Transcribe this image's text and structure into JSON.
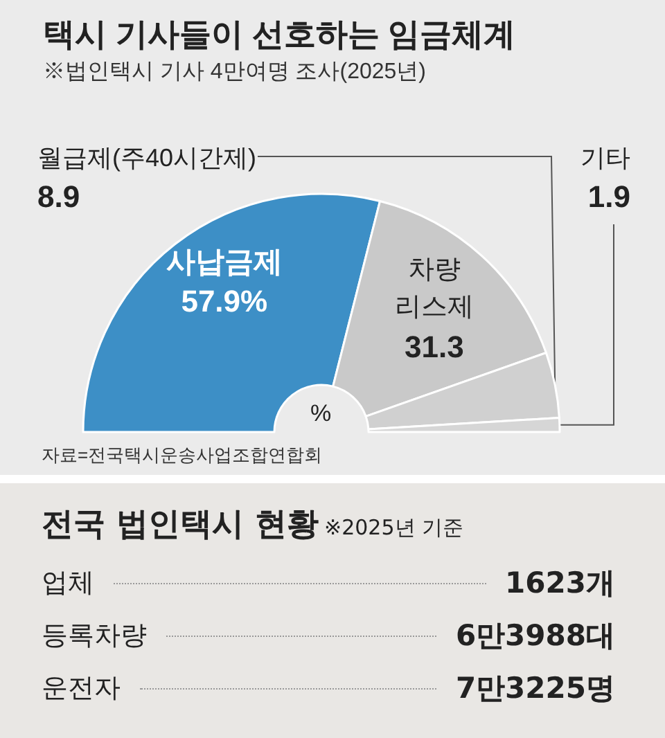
{
  "chart_data": [
    {
      "type": "donut",
      "title": "택시 기사들이 선호하는 임금체계",
      "subtitle": "※법인택시 기사 4만여명 조사(2025년)",
      "categories": [
        "사납금제",
        "차량 리스제",
        "월급제(주40시간제)",
        "기타"
      ],
      "values": [
        57.9,
        31.3,
        8.9,
        1.9
      ],
      "colors": [
        "#3d8fc6",
        "#c9c9c9",
        "#d0d0d0",
        "#d6d6d6"
      ],
      "value_labels": [
        "57.9%",
        "31.3",
        "8.9",
        "1.9"
      ],
      "annotations": [
        "%",
        "자료=전국택시운송사업조합연합회"
      ]
    },
    {
      "type": "other",
      "title": "전국 법인택시 현황",
      "subtitle": "※2025년 기준",
      "categories": [
        "업체",
        "등록차량",
        "운전자"
      ],
      "value_labels": [
        "1623개",
        "6만3988대",
        "7만3225명"
      ]
    }
  ]
}
